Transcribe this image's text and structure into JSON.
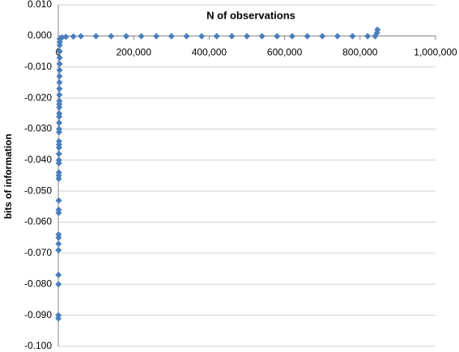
{
  "chart_data": {
    "type": "scatter",
    "title": "N of observations",
    "y_label": "bits of information",
    "color": "#4a7ebb",
    "grid": true,
    "xlim": [
      0,
      1000000
    ],
    "xticks": [
      0,
      {
        "value": 200000,
        "label": "200,000"
      },
      {
        "value": 400000,
        "label": "400,000"
      },
      {
        "value": 600000,
        "label": "600,000"
      },
      {
        "value": 800000,
        "label": "800,000"
      },
      {
        "value": 1000000,
        "label": "1,000,000"
      }
    ],
    "ylim": [
      -0.1,
      0.01
    ],
    "yticks": [
      {
        "value": 0.01,
        "label": "0.010"
      },
      {
        "value": 0,
        "label": "0.000"
      },
      {
        "value": -0.01,
        "label": "-0.010"
      },
      {
        "value": -0.02,
        "label": "-0.020"
      },
      {
        "value": -0.03,
        "label": "-0.030"
      },
      {
        "value": -0.04,
        "label": "-0.040"
      },
      {
        "value": -0.05,
        "label": "-0.050"
      },
      {
        "value": -0.06,
        "label": "-0.060"
      },
      {
        "value": -0.07,
        "label": "-0.070"
      },
      {
        "value": -0.08,
        "label": "-0.080"
      },
      {
        "value": -0.09,
        "label": "-0.090"
      },
      {
        "value": -0.1,
        "label": "-0.100"
      }
    ],
    "x": [
      200,
      300,
      400,
      500,
      600,
      700,
      800,
      900,
      1000,
      1100,
      1200,
      1300,
      1400,
      1500,
      1600,
      1700,
      1800,
      1900,
      2000,
      2100,
      2200,
      2300,
      2400,
      2500,
      2600,
      2700,
      2800,
      2900,
      3000,
      3100,
      3200,
      3300,
      3400,
      3500,
      3600,
      3700,
      3800,
      3900,
      4000,
      6000,
      10000,
      20000,
      40000,
      60000,
      100000,
      140000,
      180000,
      220000,
      260000,
      300000,
      340000,
      380000,
      420000,
      460000,
      500000,
      540000,
      580000,
      620000,
      660000,
      700000,
      740000,
      780000,
      820000,
      840000,
      845000,
      846000
    ],
    "values": [
      -0.091,
      -0.09,
      -0.08,
      -0.077,
      -0.069,
      -0.067,
      -0.065,
      -0.064,
      -0.057,
      -0.056,
      -0.053,
      -0.046,
      -0.045,
      -0.044,
      -0.041,
      -0.04,
      -0.038,
      -0.036,
      -0.035,
      -0.034,
      -0.031,
      -0.03,
      -0.028,
      -0.026,
      -0.025,
      -0.023,
      -0.022,
      -0.021,
      -0.019,
      -0.017,
      -0.015,
      -0.013,
      -0.011,
      -0.009,
      -0.007,
      -0.005,
      -0.003,
      -0.002,
      -0.001,
      -0.0008,
      -0.0005,
      -0.0003,
      -0.0002,
      -0.0001,
      -0.0001,
      -0.0001,
      -0.0001,
      -0.0001,
      -0.0001,
      -0.0001,
      -0.0001,
      -0.0001,
      -0.0001,
      -0.0001,
      -0.0001,
      -0.0001,
      -0.0001,
      -0.0001,
      -0.0001,
      -0.0001,
      -0.0001,
      -0.0001,
      -0.0001,
      -0.0001,
      0.001,
      0.002
    ]
  }
}
